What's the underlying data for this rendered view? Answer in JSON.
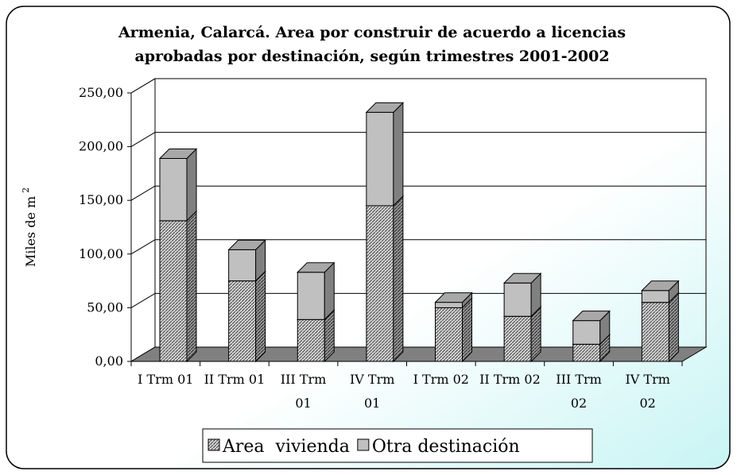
{
  "chart_data": {
    "type": "bar3d_stacked",
    "title": [
      "Armenia, Calarcá. Area por construir de acuerdo a licencias",
      "aprobadas por destinación, según trimestres 2001-2002"
    ],
    "y_label": "Miles de m",
    "y_label_superscript": "2",
    "categories": [
      "I Trm 01",
      "II Trm 01",
      "III Trm 01",
      "IV Trm 01",
      "I Trm 02",
      "II Trm 02",
      "III Trm 02",
      "IV Trm 02"
    ],
    "series": [
      {
        "name": "Area  vivienda",
        "color": "#9a9a9a",
        "values": [
          131,
          75,
          39,
          145,
          50,
          42,
          16,
          55
        ]
      },
      {
        "name": "Otra destinación",
        "color": "#c0c0c0",
        "values": [
          58,
          29,
          44,
          87,
          5,
          31,
          22,
          11
        ]
      }
    ],
    "ylim": [
      0,
      250
    ],
    "yticks": [
      {
        "value": 0,
        "label": "0,00"
      },
      {
        "value": 50,
        "label": "50,00"
      },
      {
        "value": 100,
        "label": "100,00"
      },
      {
        "value": 150,
        "label": "150,00"
      },
      {
        "value": 200,
        "label": "200,00"
      },
      {
        "value": 250,
        "label": "250,00"
      }
    ],
    "grid": true,
    "legend": "bottom"
  }
}
